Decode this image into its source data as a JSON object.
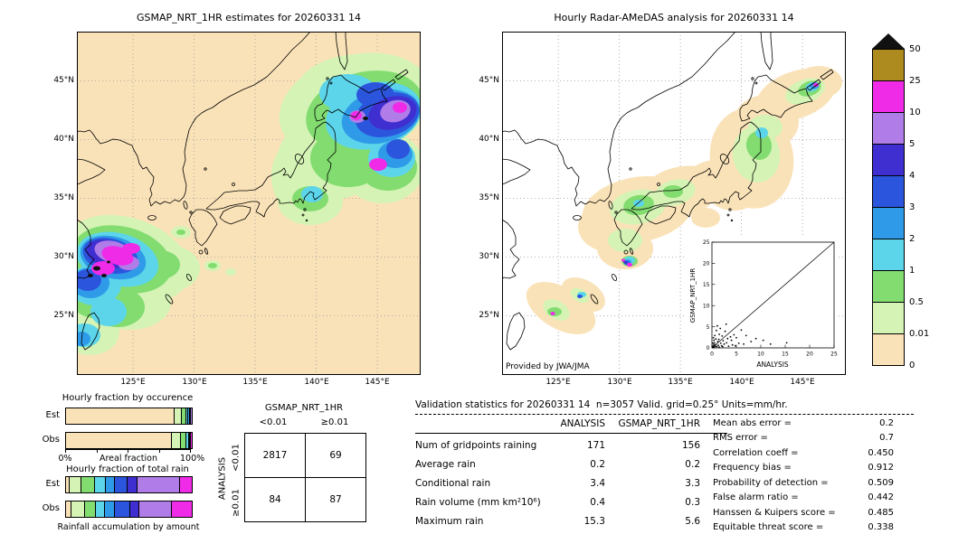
{
  "maps": {
    "lat_ticks": [
      "45°N",
      "40°N",
      "35°N",
      "30°N",
      "25°N"
    ],
    "lon_ticks": [
      "125°E",
      "130°E",
      "135°E",
      "140°E",
      "145°E"
    ],
    "left": {
      "title": "GSMAP_NRT_1HR estimates for 20260331 14"
    },
    "right": {
      "title": "Hourly Radar-AMeDAS analysis for 20260331 14",
      "credit": "Provided by JWA/JMA"
    }
  },
  "colorbar": {
    "labels": [
      "50",
      "25",
      "10",
      "5",
      "4",
      "3",
      "2",
      "1",
      "0.5",
      "0.01",
      "0"
    ],
    "colors": [
      "#AD8B1E",
      "#F02BE8",
      "#B07CE8",
      "#3F2ED0",
      "#2C55DD",
      "#2F9BE8",
      "#5CD5EA",
      "#82DC70",
      "#D4F3B4",
      "#FAE2B8"
    ],
    "over_color": "#111111"
  },
  "chart_data": [
    {
      "id": "hourly-fraction-by-occurrence",
      "type": "bar",
      "stacked": true,
      "orientation": "horizontal",
      "title": "Hourly fraction by occurence",
      "xlabel": "Areal fraction",
      "axis_min_label": "0%",
      "axis_max_label": "100%",
      "segment_color_note": "c = index into colorbar.colors (0 = 25-50 mm/hr ... 9 = 0-0.01 mm/hr)",
      "rows": [
        {
          "label": "Est",
          "segments": [
            {
              "c": 9,
              "pct": 86
            },
            {
              "c": 8,
              "pct": 6
            },
            {
              "c": 7,
              "pct": 3.5
            },
            {
              "c": 6,
              "pct": 2
            },
            {
              "c": 5,
              "pct": 1.2
            },
            {
              "c": 4,
              "pct": 0.8
            },
            {
              "c": 2,
              "pct": 0.5
            }
          ]
        },
        {
          "label": "Obs",
          "segments": [
            {
              "c": 9,
              "pct": 84
            },
            {
              "c": 8,
              "pct": 7.5
            },
            {
              "c": 7,
              "pct": 4.5
            },
            {
              "c": 6,
              "pct": 2
            },
            {
              "c": 5,
              "pct": 1
            },
            {
              "c": 4,
              "pct": 0.6
            },
            {
              "c": 1,
              "pct": 0.4
            }
          ]
        }
      ]
    },
    {
      "id": "hourly-fraction-of-total-rain",
      "type": "bar",
      "stacked": true,
      "orientation": "horizontal",
      "title": "Hourly fraction of total rain",
      "xlabel": "Rainfall accumulation by amount",
      "rows": [
        {
          "label": "Est",
          "segments": [
            {
              "c": 9,
              "pct": 3
            },
            {
              "c": 8,
              "pct": 9
            },
            {
              "c": 7,
              "pct": 11
            },
            {
              "c": 6,
              "pct": 9
            },
            {
              "c": 5,
              "pct": 7
            },
            {
              "c": 4,
              "pct": 10
            },
            {
              "c": 3,
              "pct": 8
            },
            {
              "c": 2,
              "pct": 34
            },
            {
              "c": 1,
              "pct": 9
            }
          ]
        },
        {
          "label": "Obs",
          "segments": [
            {
              "c": 9,
              "pct": 4
            },
            {
              "c": 8,
              "pct": 11
            },
            {
              "c": 7,
              "pct": 9
            },
            {
              "c": 6,
              "pct": 7
            },
            {
              "c": 5,
              "pct": 8
            },
            {
              "c": 4,
              "pct": 12
            },
            {
              "c": 3,
              "pct": 7
            },
            {
              "c": 2,
              "pct": 26
            },
            {
              "c": 1,
              "pct": 16
            }
          ]
        }
      ]
    },
    {
      "id": "inset-scatter",
      "type": "scatter",
      "xlabel": "ANALYSIS",
      "ylabel": "GSMAP_NRT_1HR",
      "xlim": [
        0,
        25
      ],
      "ylim": [
        0,
        25
      ],
      "xticks": [
        0,
        5,
        10,
        15,
        20,
        25
      ],
      "yticks": [
        0,
        5,
        10,
        15,
        20,
        25
      ],
      "diagonal": true,
      "points": [
        [
          0.1,
          0.1
        ],
        [
          0.2,
          0.4
        ],
        [
          0.2,
          1.1
        ],
        [
          0.3,
          0.2
        ],
        [
          0.3,
          2.4
        ],
        [
          0.4,
          0.7
        ],
        [
          0.4,
          1.8
        ],
        [
          0.5,
          0.1
        ],
        [
          0.5,
          1.2
        ],
        [
          0.6,
          2.9
        ],
        [
          0.7,
          0.4
        ],
        [
          0.8,
          0.8
        ],
        [
          0.8,
          2.1
        ],
        [
          0.9,
          4.1
        ],
        [
          1.0,
          0.3
        ],
        [
          1.1,
          5.2
        ],
        [
          1.2,
          1.5
        ],
        [
          1.3,
          0.6
        ],
        [
          1.4,
          2.0
        ],
        [
          1.5,
          0.2
        ],
        [
          1.5,
          3.2
        ],
        [
          1.7,
          4.6
        ],
        [
          1.8,
          1.1
        ],
        [
          2.0,
          0.5
        ],
        [
          2.1,
          2.8
        ],
        [
          2.2,
          0.3
        ],
        [
          2.3,
          1.7
        ],
        [
          2.5,
          0.9
        ],
        [
          2.7,
          3.9
        ],
        [
          2.9,
          5.6
        ],
        [
          3.0,
          1.2
        ],
        [
          3.2,
          2.2
        ],
        [
          3.4,
          0.4
        ],
        [
          3.8,
          2.6
        ],
        [
          4.0,
          1.8
        ],
        [
          4.2,
          0.7
        ],
        [
          4.5,
          3.1
        ],
        [
          4.8,
          0.5
        ],
        [
          5.0,
          2.4
        ],
        [
          5.5,
          1.1
        ],
        [
          6.0,
          4.2
        ],
        [
          6.5,
          0.9
        ],
        [
          7.0,
          2.9
        ],
        [
          8.0,
          1.5
        ],
        [
          9.0,
          2.2
        ],
        [
          10.5,
          1.8
        ],
        [
          12.0,
          0.9
        ],
        [
          15.3,
          1.2
        ]
      ]
    },
    {
      "id": "contingency-table",
      "type": "table",
      "col_group": "GSMAP_NRT_1HR",
      "row_group": "ANALYSIS",
      "col_headers": [
        "<0.01",
        "≥0.01"
      ],
      "row_headers": [
        "<0.01",
        "≥0.01"
      ],
      "values": [
        [
          "2817",
          "69"
        ],
        [
          "84",
          "87"
        ]
      ]
    },
    {
      "id": "validation-statistics",
      "type": "table",
      "title": "Validation statistics for 20260331 14  n=3057 Valid. grid=0.25° Units=mm/hr.",
      "headers": [
        "ANALYSIS",
        "GSMAP_NRT_1HR"
      ],
      "rows": [
        {
          "label": "Num of gridpoints raining",
          "analysis": "171",
          "gsmap": "156"
        },
        {
          "label": "Average rain",
          "analysis": "0.2",
          "gsmap": "0.2"
        },
        {
          "label": "Conditional rain",
          "analysis": "3.4",
          "gsmap": "3.3"
        },
        {
          "label": "Rain volume (mm km²10⁶)",
          "analysis": "0.4",
          "gsmap": "0.3"
        },
        {
          "label": "Maximum rain",
          "analysis": "15.3",
          "gsmap": "5.6"
        }
      ],
      "stats": [
        {
          "label": "Mean abs error =",
          "value": "0.2"
        },
        {
          "label": "RMS error =",
          "value": "0.7"
        },
        {
          "label": "Correlation coeff =",
          "value": "0.450"
        },
        {
          "label": "Frequency bias =",
          "value": "0.912"
        },
        {
          "label": "Probability of detection =",
          "value": "0.509"
        },
        {
          "label": "False alarm ratio =",
          "value": "0.442"
        },
        {
          "label": "Hanssen & Kuipers score =",
          "value": "0.485"
        },
        {
          "label": "Equitable threat score =",
          "value": "0.338"
        }
      ]
    }
  ]
}
